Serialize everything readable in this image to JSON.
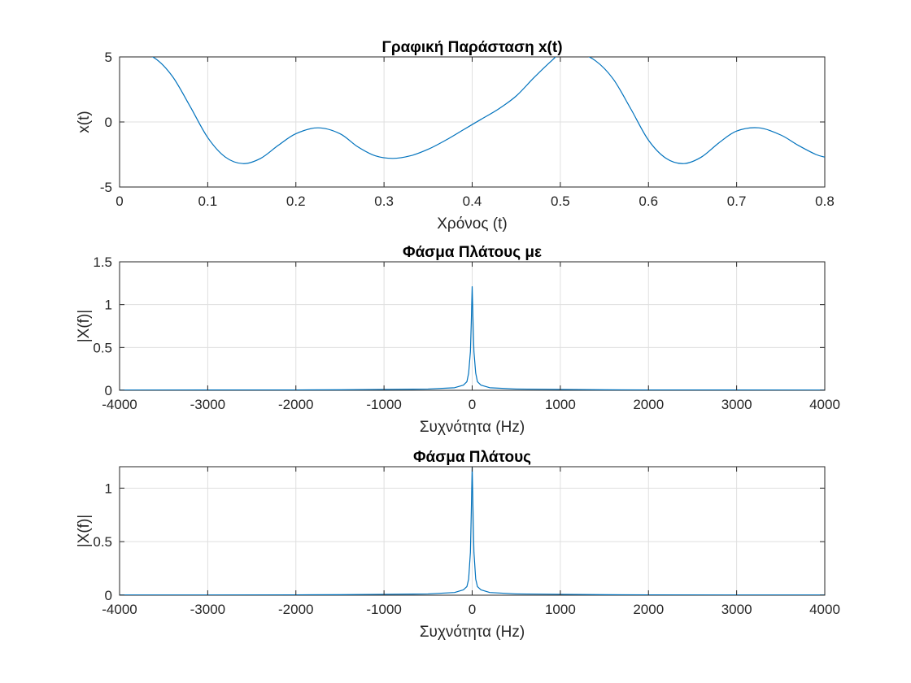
{
  "figure": {
    "background": "#ffffff",
    "line_color": "#0072bd",
    "grid_color": "#dfdfdf"
  },
  "chart_data": [
    {
      "type": "line",
      "title": "Γραφική Παράσταση x(t)",
      "xlabel": "Χρόνος (t)",
      "ylabel": "x(t)",
      "xlim": [
        0,
        0.8
      ],
      "ylim": [
        -5,
        5
      ],
      "xticks": [
        0,
        0.1,
        0.2,
        0.3,
        0.4,
        0.5,
        0.6,
        0.7,
        0.8
      ],
      "xtick_labels": [
        "0",
        "0.1",
        "0.2",
        "0.3",
        "0.4",
        "0.5",
        "0.6",
        "0.7",
        "0.8"
      ],
      "yticks": [
        -5,
        0,
        5
      ],
      "ytick_labels": [
        "-5",
        "0",
        "5"
      ],
      "grid": true,
      "series": [
        {
          "x": [
            0,
            0.02,
            0.04,
            0.06,
            0.08,
            0.1,
            0.12,
            0.14,
            0.16,
            0.18,
            0.2,
            0.225,
            0.25,
            0.27,
            0.29,
            0.31,
            0.33,
            0.35,
            0.37,
            0.39,
            0.41,
            0.43,
            0.45,
            0.47,
            0.49,
            0.5,
            0.52,
            0.54,
            0.56,
            0.58,
            0.6,
            0.62,
            0.64,
            0.66,
            0.68,
            0.7,
            0.725,
            0.75,
            0.77,
            0.79,
            0.8
          ],
          "values": [
            5.0,
            5.3,
            4.9,
            3.5,
            1.2,
            -1.2,
            -2.7,
            -3.2,
            -2.8,
            -1.8,
            -0.9,
            -0.45,
            -0.9,
            -1.9,
            -2.6,
            -2.8,
            -2.6,
            -2.1,
            -1.4,
            -0.6,
            0.2,
            1.0,
            2.0,
            3.4,
            4.7,
            5.2,
            5.3,
            4.7,
            3.3,
            1.0,
            -1.4,
            -2.8,
            -3.2,
            -2.7,
            -1.6,
            -0.7,
            -0.45,
            -1.0,
            -1.8,
            -2.5,
            -2.7
          ]
        }
      ]
    },
    {
      "type": "line",
      "title": "Φάσμα Πλάτους με",
      "xlabel": "Συχνότητα (Hz)",
      "ylabel": "|X(f)|",
      "xlim": [
        -4000,
        4000
      ],
      "ylim": [
        0,
        1.5
      ],
      "xticks": [
        -4000,
        -3000,
        -2000,
        -1000,
        0,
        1000,
        2000,
        3000,
        4000
      ],
      "xtick_labels": [
        "-4000",
        "-3000",
        "-2000",
        "-1000",
        "0",
        "1000",
        "2000",
        "3000",
        "4000"
      ],
      "yticks": [
        0,
        0.5,
        1,
        1.5
      ],
      "ytick_labels": [
        "0",
        "0.5",
        "1",
        "1.5"
      ],
      "grid": true,
      "series": [
        {
          "x": [
            -4000,
            -2000,
            -1500,
            -1000,
            -500,
            -200,
            -100,
            -60,
            -40,
            -20,
            -10,
            0,
            10,
            20,
            40,
            60,
            100,
            200,
            500,
            1000,
            1500,
            2000,
            4000
          ],
          "values": [
            0.003,
            0.004,
            0.006,
            0.01,
            0.015,
            0.03,
            0.06,
            0.1,
            0.2,
            0.45,
            0.8,
            1.21,
            0.8,
            0.45,
            0.2,
            0.1,
            0.06,
            0.03,
            0.015,
            0.01,
            0.006,
            0.004,
            0.003
          ]
        }
      ]
    },
    {
      "type": "line",
      "title": "Φάσμα Πλάτους",
      "xlabel": "Συχνότητα (Hz)",
      "ylabel": "|X(f)|",
      "xlim": [
        -4000,
        4000
      ],
      "ylim": [
        0,
        1.2
      ],
      "xticks": [
        -4000,
        -3000,
        -2000,
        -1000,
        0,
        1000,
        2000,
        3000,
        4000
      ],
      "xtick_labels": [
        "-4000",
        "-3000",
        "-2000",
        "-1000",
        "0",
        "1000",
        "2000",
        "3000",
        "4000"
      ],
      "yticks": [
        0,
        0.5,
        1
      ],
      "ytick_labels": [
        "0",
        "0.5",
        "1"
      ],
      "grid": true,
      "series": [
        {
          "x": [
            -4000,
            -2000,
            -1500,
            -1000,
            -500,
            -200,
            -100,
            -60,
            -40,
            -20,
            -10,
            0,
            10,
            20,
            40,
            60,
            100,
            200,
            500,
            1000,
            1500,
            2000,
            4000
          ],
          "values": [
            0.002,
            0.003,
            0.005,
            0.008,
            0.012,
            0.025,
            0.05,
            0.08,
            0.15,
            0.4,
            0.78,
            1.2,
            0.78,
            0.4,
            0.15,
            0.08,
            0.05,
            0.025,
            0.012,
            0.008,
            0.005,
            0.003,
            0.002
          ]
        }
      ]
    }
  ]
}
